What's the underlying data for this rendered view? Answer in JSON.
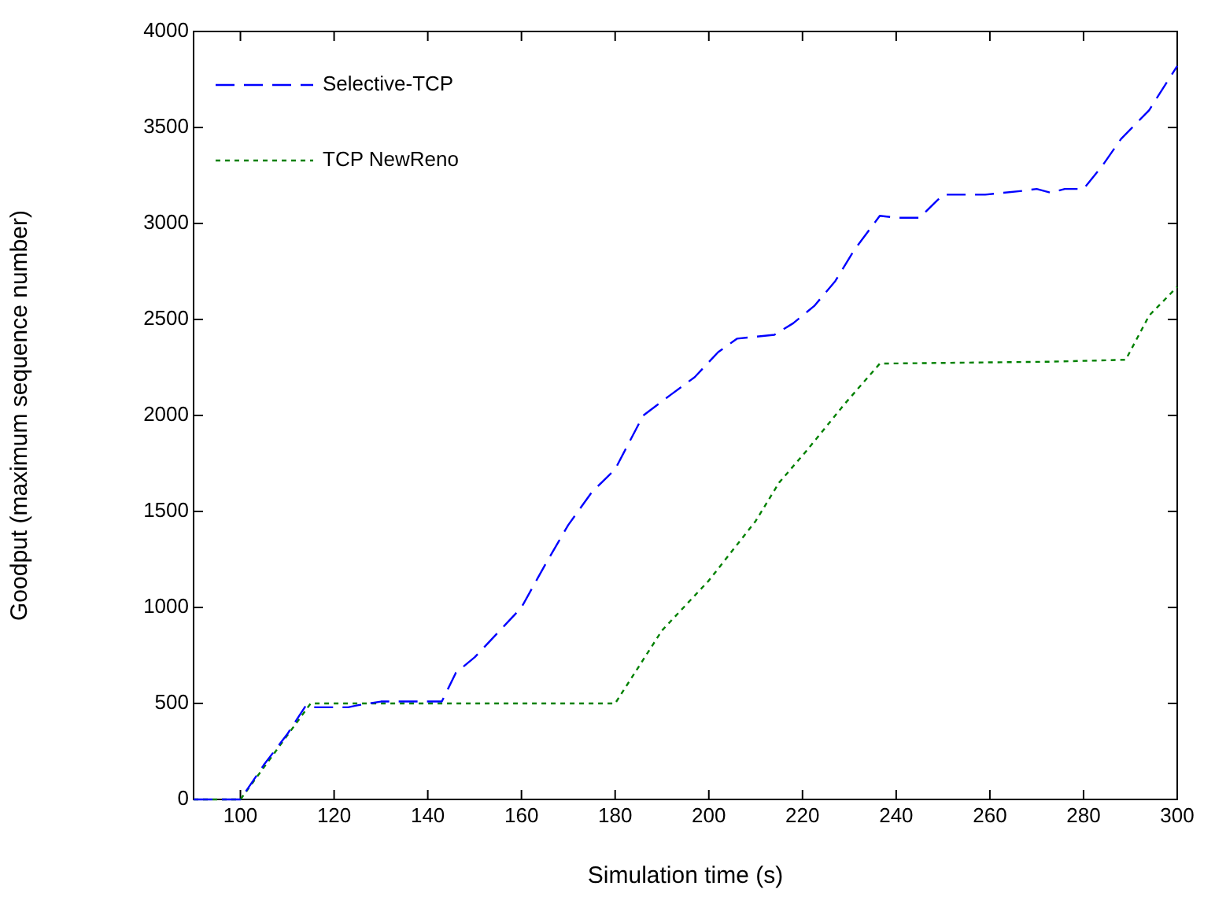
{
  "chart_data": {
    "type": "line",
    "xlabel": "Simulation time (s)",
    "ylabel": "Goodput (maximum sequence number)",
    "xlim": [
      90,
      300
    ],
    "xticks": [
      100,
      120,
      140,
      160,
      180,
      200,
      220,
      240,
      260,
      280,
      300
    ],
    "ylim": [
      0,
      4000
    ],
    "yticks": [
      0,
      500,
      1000,
      1500,
      2000,
      2500,
      3000,
      3500,
      4000
    ],
    "grid": false,
    "legend": "top left",
    "marker": "none",
    "series": [
      {
        "name": "Selective-TCP",
        "color": "#0000ff",
        "line_style": "dashed",
        "x": [
          90,
          100,
          105,
          110,
          114,
          116,
          123,
          125,
          130,
          143,
          146,
          150,
          155,
          160,
          165,
          170,
          175,
          180,
          186,
          192,
          197,
          202,
          206,
          214,
          218,
          222.5,
          227,
          231,
          236.5,
          240,
          245,
          250,
          259,
          267,
          270,
          273,
          276,
          280,
          284,
          288,
          294,
          300
        ],
        "values": [
          0,
          0,
          180,
          340,
          490,
          480,
          480,
          490,
          510,
          510,
          660,
          740,
          870,
          1000,
          1220,
          1430,
          1600,
          1720,
          2000,
          2110,
          2200,
          2330,
          2400,
          2420,
          2480,
          2570,
          2700,
          2860,
          3040,
          3030,
          3030,
          3150,
          3150,
          3170,
          3180,
          3160,
          3180,
          3180,
          3300,
          3440,
          3590,
          3820
        ]
      },
      {
        "name": "TCP NewReno",
        "color": "#008000",
        "line_style": "dotted",
        "x": [
          90,
          100,
          115,
          130,
          180,
          190,
          200,
          210,
          215,
          221,
          229,
          236.5,
          273,
          289,
          294,
          300
        ],
        "values": [
          0,
          0,
          500,
          500,
          500,
          880,
          1140,
          1450,
          1650,
          1820,
          2060,
          2270,
          2280,
          2290,
          2520,
          2670
        ]
      }
    ]
  }
}
